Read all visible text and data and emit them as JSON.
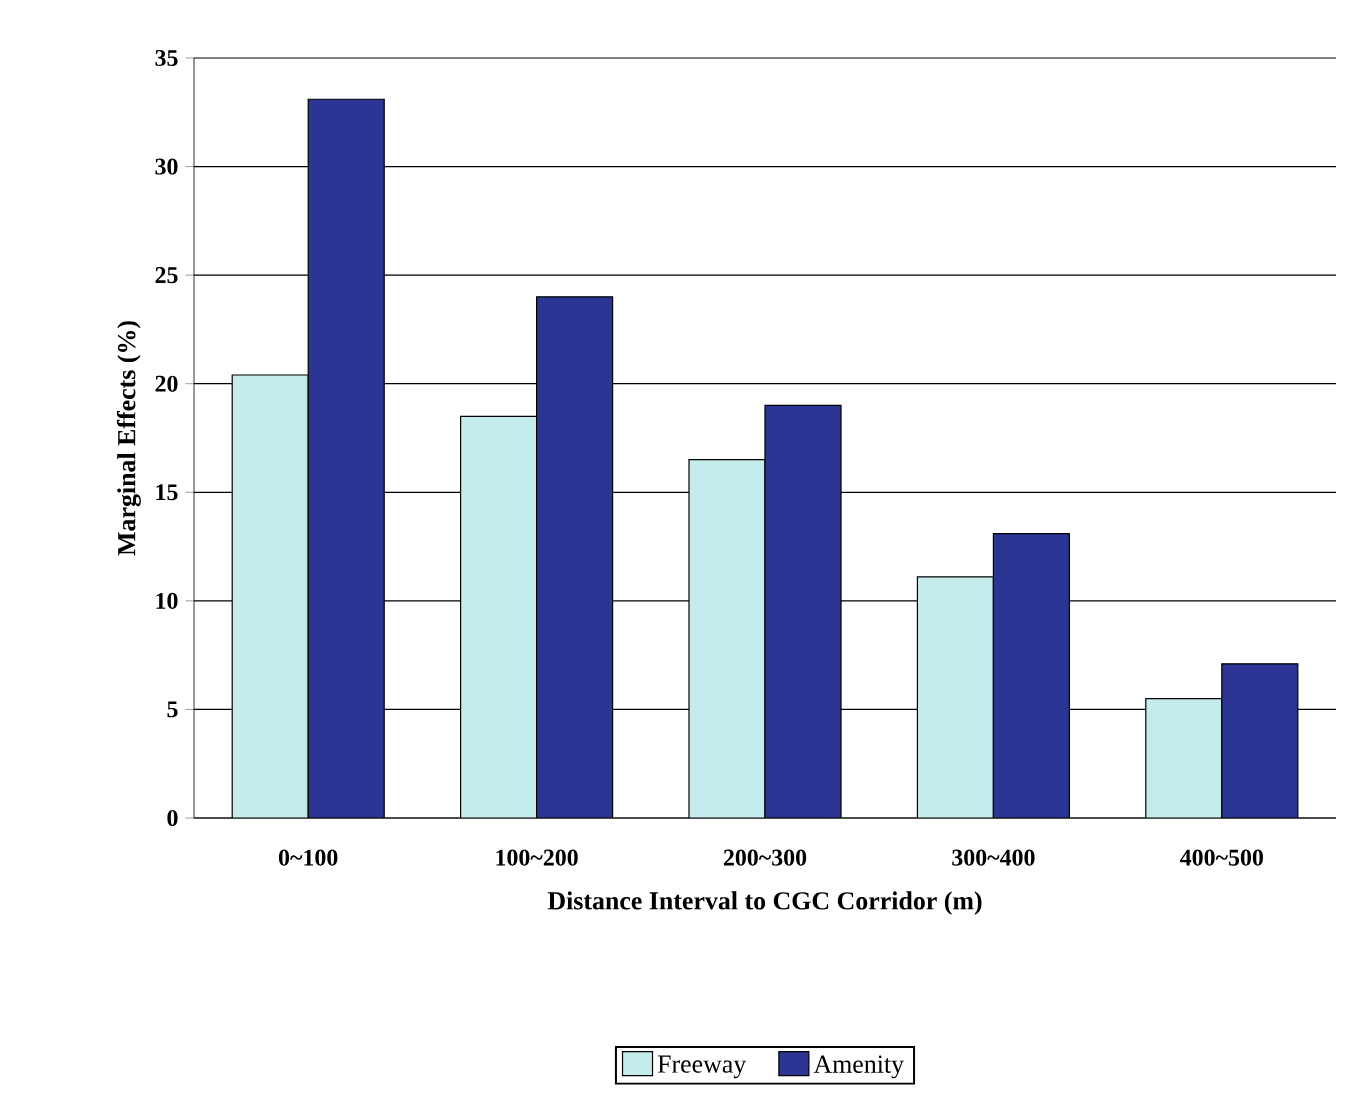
{
  "chart_data": {
    "type": "bar",
    "xlabel": "Distance Interval to CGC Corridor (m)",
    "ylabel": "Marginal Effects (%)",
    "categories": [
      "0~100",
      "100~200",
      "200~300",
      "300~400",
      "400~500"
    ],
    "series": [
      {
        "name": "Freeway",
        "color": "#c4ecec",
        "values": [
          20.4,
          18.5,
          16.5,
          11.1,
          5.5
        ]
      },
      {
        "name": "Amenity",
        "color": "#2b3593",
        "values": [
          33.1,
          24,
          19,
          13.1,
          7.1
        ]
      }
    ],
    "ylim": [
      0,
      35
    ],
    "yticks": [
      0,
      5,
      10,
      15,
      20,
      25,
      30,
      35
    ],
    "grid": "y",
    "legend": "bottom"
  }
}
